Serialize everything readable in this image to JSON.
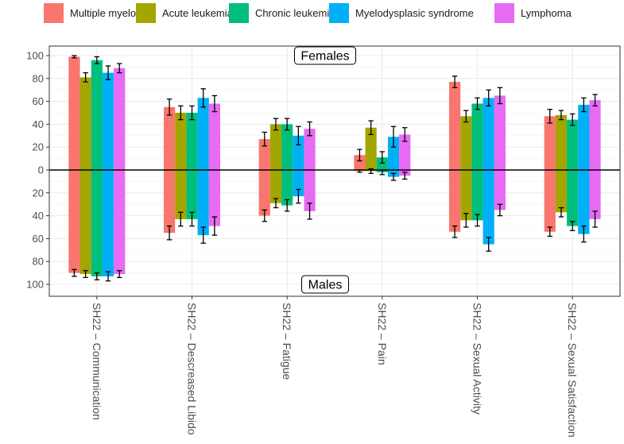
{
  "chart_data": {
    "type": "bar",
    "title": "",
    "xlabel": "",
    "ylabel": "",
    "ylim": [
      -100,
      100
    ],
    "y_tick_values": [
      100,
      80,
      60,
      40,
      20,
      0,
      -20,
      -40,
      -60,
      -80,
      -100
    ],
    "y_tick_labels": [
      "100",
      "80",
      "60",
      "40",
      "20",
      "0",
      "20",
      "40",
      "60",
      "80",
      "100"
    ],
    "grid": true,
    "legend_position": "top",
    "categories": [
      "SH22 – Communication",
      "SH22 – Descreased Libido",
      "SH22 – Fatigue",
      "SH22 – Pain",
      "SH22 – Sexual Activity",
      "SH22 – Sexual Satisfaction"
    ],
    "annotations": {
      "top": "Females",
      "bottom": "Males"
    },
    "series": [
      {
        "name": "Multiple myeloma",
        "color": "#F8766D",
        "females": [
          99,
          55,
          27,
          13,
          77,
          47
        ],
        "females_error": [
          1,
          7,
          6,
          5,
          5,
          6
        ],
        "males": [
          90,
          55,
          40,
          1,
          54,
          54
        ],
        "males_error": [
          3,
          6,
          5,
          1,
          5,
          4
        ]
      },
      {
        "name": "Acute leukemia",
        "color": "#A3A500",
        "females": [
          81,
          50,
          40,
          37,
          47,
          48
        ],
        "females_error": [
          4,
          6,
          5,
          6,
          5,
          4
        ],
        "males": [
          91,
          43,
          29,
          1,
          44,
          37
        ],
        "males_error": [
          3,
          6,
          4,
          2,
          6,
          4
        ]
      },
      {
        "name": "Chronic leukemia",
        "color": "#00BF7D",
        "females": [
          96,
          50,
          40,
          11,
          58,
          44
        ],
        "females_error": [
          3,
          6,
          5,
          5,
          5,
          5
        ],
        "males": [
          93,
          43,
          31,
          2,
          44,
          49
        ],
        "males_error": [
          3,
          6,
          5,
          2,
          5,
          4
        ]
      },
      {
        "name": "Myelodysplasic syndrome",
        "color": "#00B0F6",
        "females": [
          85,
          63,
          30,
          29,
          63,
          57
        ],
        "females_error": [
          6,
          8,
          8,
          9,
          7,
          6
        ],
        "males": [
          93,
          57,
          23,
          6,
          65,
          56
        ],
        "males_error": [
          4,
          7,
          6,
          3,
          6,
          7
        ]
      },
      {
        "name": "Lymphoma",
        "color": "#E76BF3",
        "females": [
          89,
          58,
          36,
          31,
          65,
          61
        ],
        "females_error": [
          4,
          7,
          6,
          6,
          7,
          5
        ],
        "males": [
          91,
          49,
          36,
          5,
          35,
          43
        ],
        "males_error": [
          3,
          8,
          7,
          3,
          5,
          7
        ]
      }
    ]
  }
}
